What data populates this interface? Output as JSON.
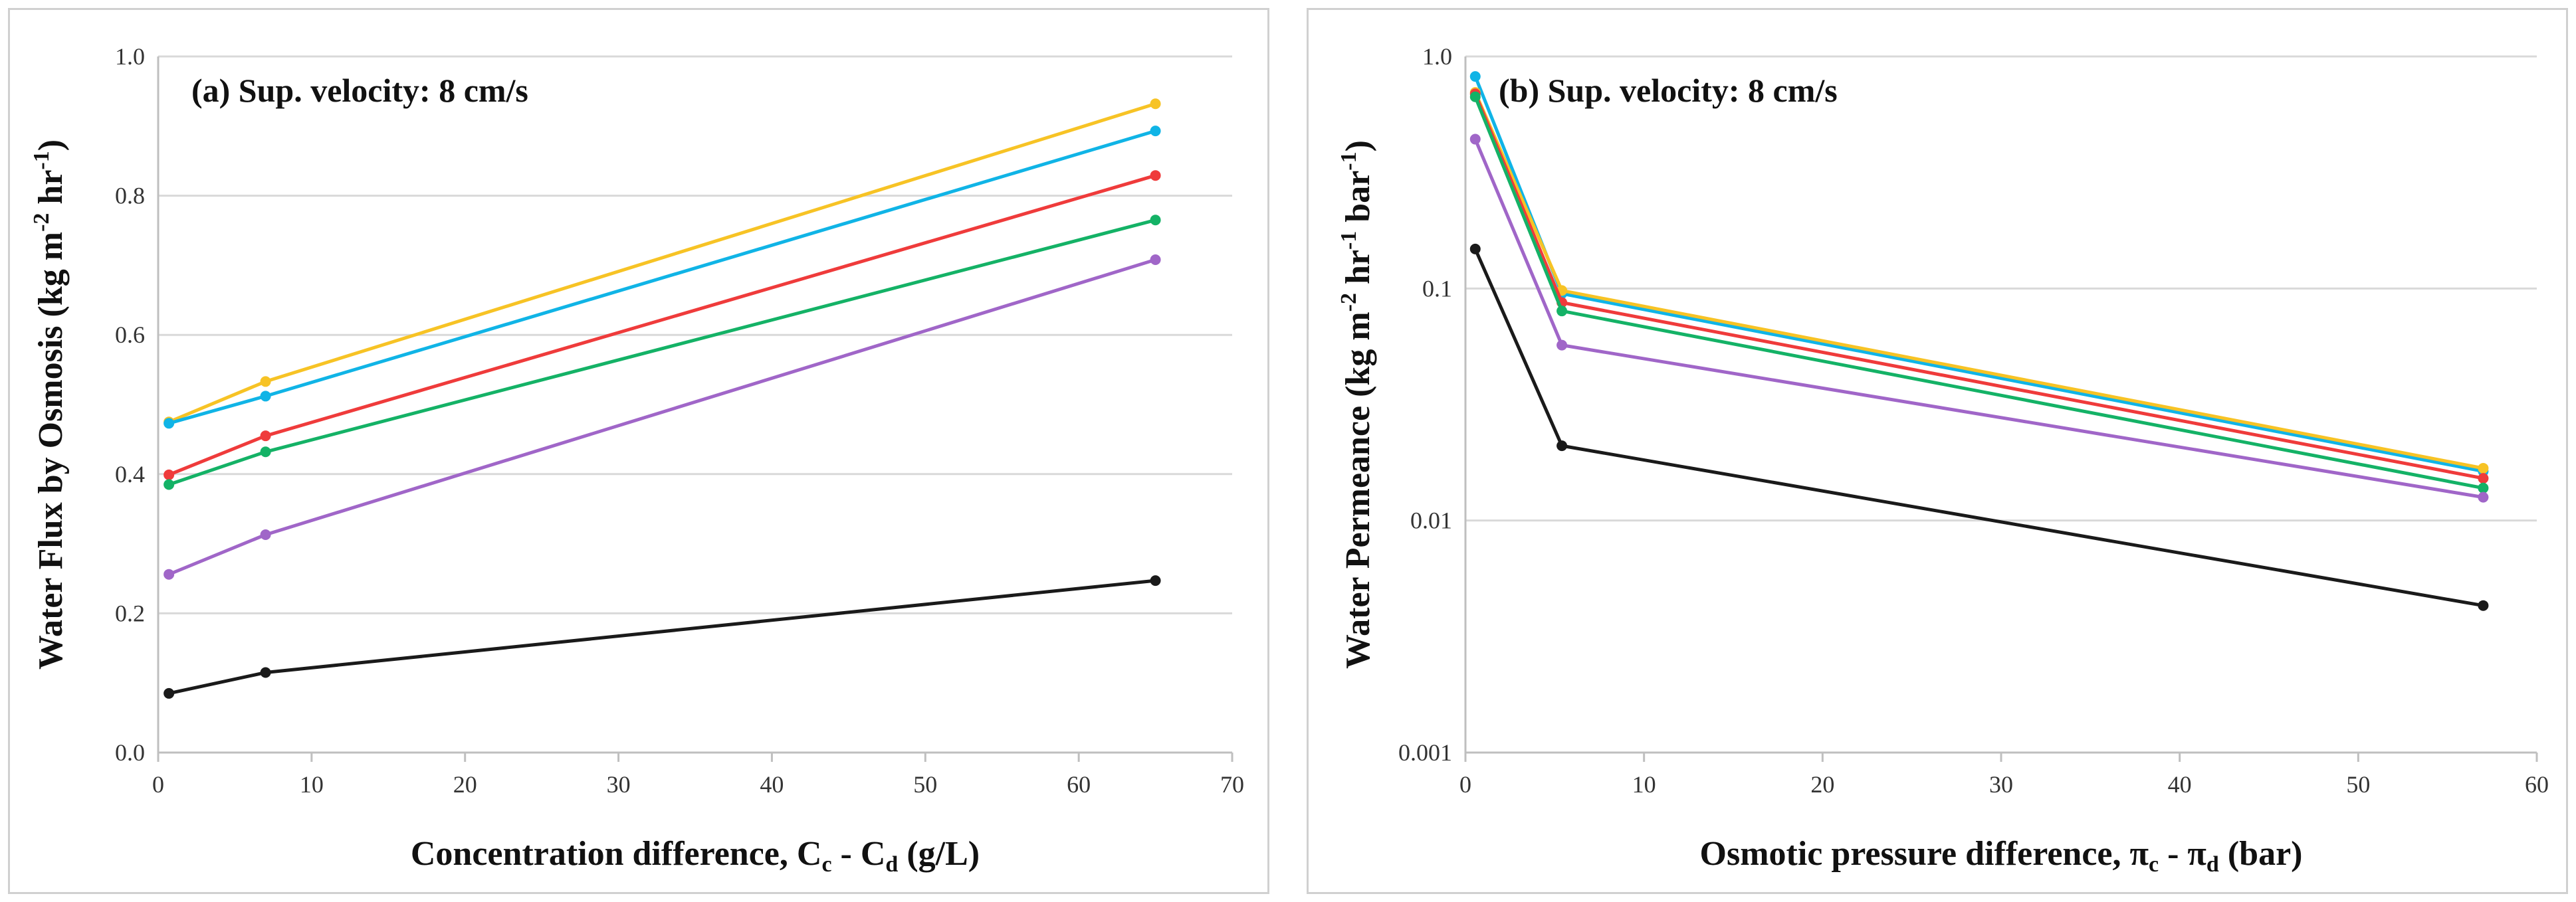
{
  "colors": {
    "black": "#1a1a1a",
    "purple": "#a066c8",
    "green": "#14b266",
    "red": "#ef3b3b",
    "blue": "#10b4e6",
    "yellow": "#f7c325",
    "grid": "#d9d9d9",
    "axis": "#bfbfbf"
  },
  "chart_data": [
    {
      "type": "line",
      "panel_title": "(a) Sup. velocity: 8 cm/s",
      "xlabel": "Concentration difference, Cc - Cd (g/L)",
      "xlabel_parts": {
        "main": "Concentration difference, C",
        "sub1": "c",
        "mid": " - C",
        "sub2": "d",
        "tail": " (g/L)"
      },
      "ylabel": "Water Flux by Osmosis (kg m-2 hr-1)",
      "ylabel_parts": {
        "main": "Water Flux by Osmosis (kg m",
        "sup1": "-2",
        "mid": " hr",
        "sup2": "-1",
        "tail": ")"
      },
      "xlim": [
        0,
        70
      ],
      "ylim": [
        0,
        1.0
      ],
      "yscale": "linear",
      "xticks": [
        "0",
        "10",
        "20",
        "30",
        "40",
        "50",
        "60",
        "70"
      ],
      "yticks": [
        "0.0",
        "0.2",
        "0.4",
        "0.6",
        "0.8",
        "1.0"
      ],
      "grid": "horizontal",
      "x": [
        0.7,
        7,
        65
      ],
      "series": [
        {
          "name": "yellow",
          "values": [
            0.475,
            0.533,
            0.932
          ]
        },
        {
          "name": "blue",
          "values": [
            0.473,
            0.512,
            0.893
          ]
        },
        {
          "name": "red",
          "values": [
            0.399,
            0.455,
            0.829
          ]
        },
        {
          "name": "green",
          "values": [
            0.385,
            0.432,
            0.765
          ]
        },
        {
          "name": "purple",
          "values": [
            0.256,
            0.313,
            0.708
          ]
        },
        {
          "name": "black",
          "values": [
            0.085,
            0.115,
            0.247
          ]
        }
      ]
    },
    {
      "type": "line",
      "panel_title": "(b) Sup. velocity: 8 cm/s",
      "xlabel": "Osmotic pressure difference, πc - πd (bar)",
      "xlabel_parts": {
        "main": "Osmotic pressure difference, π",
        "sub1": "c",
        "mid": " - π",
        "sub2": "d",
        "tail": " (bar)"
      },
      "ylabel": "Water Permeance (kg m-2 hr-1 bar-1)",
      "ylabel_parts": {
        "main": "Water Permeance (kg m",
        "sup1": "-2",
        "mid": " hr",
        "sup2": "-1",
        "mid2": " bar",
        "sup3": "-1",
        "tail": ")"
      },
      "xlim": [
        0,
        60
      ],
      "ylim": [
        0.001,
        1.0
      ],
      "yscale": "log",
      "xticks": [
        "0",
        "10",
        "20",
        "30",
        "40",
        "50",
        "60"
      ],
      "yticks": [
        "0.001",
        "0.01",
        "0.1",
        "1.0"
      ],
      "grid": "horizontal",
      "x": [
        0.55,
        5.4,
        57
      ],
      "series": [
        {
          "name": "blue",
          "values": [
            0.82,
            0.095,
            0.0163
          ]
        },
        {
          "name": "yellow",
          "values": [
            0.7,
            0.098,
            0.0168
          ]
        },
        {
          "name": "red",
          "values": [
            0.69,
            0.087,
            0.0152
          ]
        },
        {
          "name": "green",
          "values": [
            0.67,
            0.08,
            0.0138
          ]
        },
        {
          "name": "purple",
          "values": [
            0.44,
            0.057,
            0.0126
          ]
        },
        {
          "name": "black",
          "values": [
            0.148,
            0.021,
            0.0043
          ]
        }
      ]
    }
  ]
}
